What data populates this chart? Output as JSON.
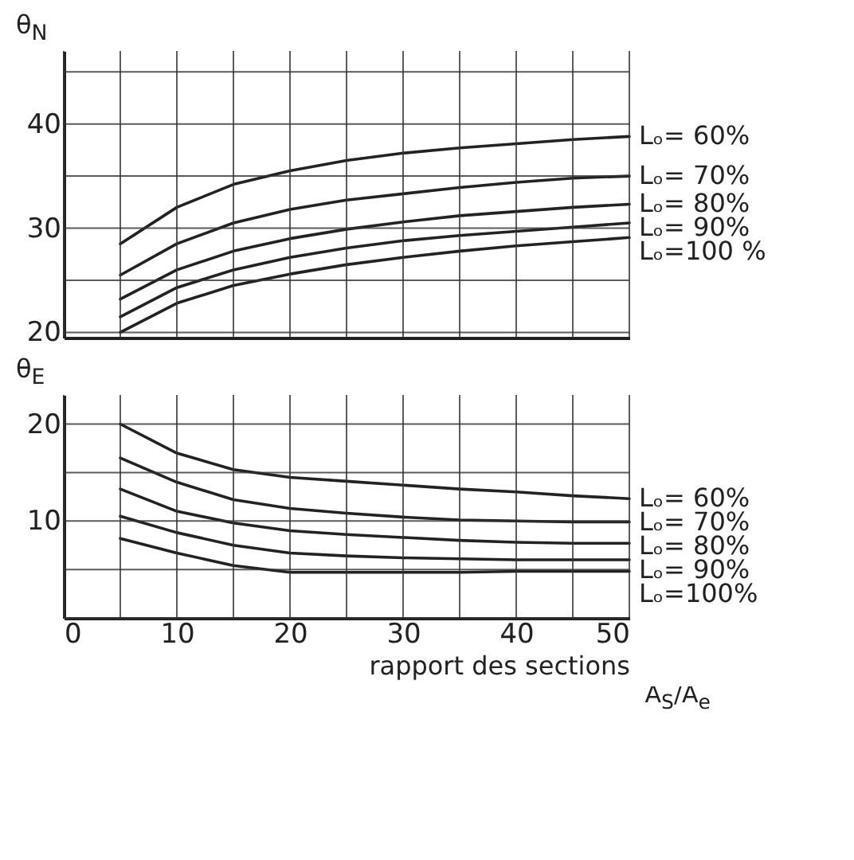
{
  "chart_data": [
    {
      "type": "line",
      "ylabel": "θ$_{N}$",
      "x": [
        5,
        10,
        15,
        20,
        25,
        30,
        35,
        40,
        45,
        50
      ],
      "xlim": [
        0,
        50
      ],
      "xticks": [
        0,
        {
          "value": 5,
          "label": null
        },
        10,
        {
          "value": 15,
          "label": null
        },
        20,
        {
          "value": 25,
          "label": null
        },
        30,
        {
          "value": 35,
          "label": null
        },
        40,
        {
          "value": 45,
          "label": null
        },
        50
      ],
      "ylim": [
        19.5,
        47
      ],
      "yticks": [
        20,
        {
          "value": 25,
          "label": null
        },
        30,
        {
          "value": 35,
          "label": null
        },
        40,
        {
          "value": 45,
          "label": null
        }
      ],
      "grid": true,
      "legend": false,
      "tick_labels": "y",
      "series": [
        {
          "name": "Lₒ= 60%",
          "color": "#222222",
          "values": [
            28.5,
            32,
            34.2,
            35.5,
            36.5,
            37.2,
            37.7,
            38.1,
            38.5,
            38.8
          ]
        },
        {
          "name": "Lₒ= 70%",
          "color": "#222222",
          "values": [
            25.5,
            28.5,
            30.5,
            31.8,
            32.7,
            33.3,
            33.9,
            34.4,
            34.8,
            35
          ]
        },
        {
          "name": "Lₒ= 80%",
          "color": "#222222",
          "values": [
            23.2,
            26,
            27.8,
            29,
            29.9,
            30.6,
            31.2,
            31.6,
            32,
            32.3
          ]
        },
        {
          "name": "Lₒ= 90%",
          "color": "#222222",
          "values": [
            21.5,
            24.3,
            26,
            27.2,
            28.1,
            28.8,
            29.3,
            29.7,
            30.1,
            30.5
          ]
        },
        {
          "name": "Lₒ=100 %",
          "color": "#222222",
          "values": [
            20,
            22.8,
            24.5,
            25.6,
            26.5,
            27.2,
            27.8,
            28.3,
            28.7,
            29.1
          ]
        }
      ]
    },
    {
      "type": "line",
      "ylabel": "θ$_{E}$",
      "xlabel": "rapport des sections",
      "annotations": [
        "A$_{S}$/A$_{e}$"
      ],
      "x": [
        5,
        10,
        15,
        20,
        25,
        30,
        35,
        40,
        45,
        50
      ],
      "xlim": [
        0,
        50
      ],
      "xticks": [
        0,
        {
          "value": 5,
          "label": null
        },
        10,
        {
          "value": 15,
          "label": null
        },
        20,
        {
          "value": 25,
          "label": null
        },
        30,
        {
          "value": 35,
          "label": null
        },
        40,
        {
          "value": 45,
          "label": null
        },
        50
      ],
      "ylim": [
        0,
        23
      ],
      "yticks": [
        {
          "value": 0,
          "label": null
        },
        {
          "value": 5,
          "label": null
        },
        10,
        {
          "value": 15,
          "label": null
        },
        20
      ],
      "grid": true,
      "legend": false,
      "series": [
        {
          "name": "Lₒ= 60%",
          "color": "#222222",
          "values": [
            20,
            17,
            15.3,
            14.5,
            14.1,
            13.7,
            13.3,
            13,
            12.6,
            12.3
          ]
        },
        {
          "name": "Lₒ= 70%",
          "color": "#222222",
          "values": [
            16.5,
            14,
            12.2,
            11.3,
            10.8,
            10.4,
            10.1,
            10,
            9.9,
            9.9
          ]
        },
        {
          "name": "Lₒ= 80%",
          "color": "#222222",
          "values": [
            13.3,
            11,
            9.8,
            9,
            8.6,
            8.3,
            8,
            7.8,
            7.7,
            7.7
          ]
        },
        {
          "name": "Lₒ= 90%",
          "color": "#222222",
          "values": [
            10.5,
            8.8,
            7.5,
            6.7,
            6.4,
            6.2,
            6.1,
            6,
            6,
            6
          ]
        },
        {
          "name": "Lₒ=100%",
          "color": "#222222",
          "values": [
            8.2,
            6.7,
            5.4,
            4.7,
            4.7,
            4.7,
            4.7,
            4.8,
            4.8,
            4.8
          ]
        }
      ]
    }
  ]
}
